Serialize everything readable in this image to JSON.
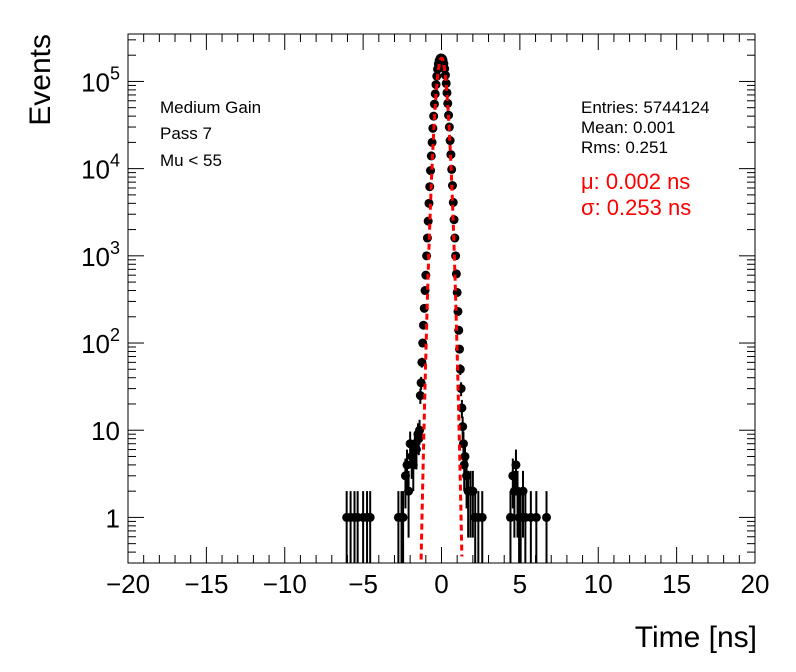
{
  "chart_data": {
    "type": "scatter",
    "title": "",
    "xlabel": "Time [ns]",
    "ylabel": "Events",
    "xlim": [
      -20,
      20
    ],
    "ylim": [
      0.3,
      350000
    ],
    "y_scale": "log",
    "grid": false,
    "x_ticks": [
      "−20",
      "−15",
      "−10",
      "−5",
      "0",
      "5",
      "10",
      "15",
      "20"
    ],
    "x_tick_values": [
      -20,
      -15,
      -10,
      -5,
      0,
      5,
      10,
      15,
      20
    ],
    "y_ticks": [
      {
        "value": 1,
        "base": "1",
        "exp": ""
      },
      {
        "value": 10,
        "base": "10",
        "exp": ""
      },
      {
        "value": 100,
        "base": "10",
        "exp": "2"
      },
      {
        "value": 1000,
        "base": "10",
        "exp": "3"
      },
      {
        "value": 10000,
        "base": "10",
        "exp": "4"
      },
      {
        "value": 100000,
        "base": "10",
        "exp": "5"
      }
    ],
    "annotations_left": [
      "Medium Gain",
      "Pass 7",
      "Mu < 55"
    ],
    "stats": [
      "Entries: 5744124",
      "Mean: 0.001",
      "Rms: 0.251"
    ],
    "fit_text": [
      "μ: 0.002 ns",
      "σ: 0.253 ns"
    ],
    "fit": {
      "type": "gaussian",
      "mu": 0.002,
      "sigma": 0.253,
      "amplitude": 185000,
      "x_range": [
        -1.3,
        1.3
      ],
      "color": "#ff0000"
    },
    "series": [
      {
        "marker_color": "#000000",
        "x": [
          -6.05,
          -5.8,
          -5.55,
          -5.35,
          -5.0,
          -4.75,
          -4.55,
          -2.75,
          -2.55,
          -2.45,
          -2.3,
          -2.2,
          -2.1,
          -2.0,
          -1.9,
          -1.8,
          -1.7,
          -1.6,
          -1.5,
          -1.45,
          -1.4,
          -1.35,
          -1.3,
          -1.25,
          -1.2,
          -1.15,
          -1.1,
          -1.05,
          -1.0,
          -0.95,
          -0.9,
          -0.85,
          -0.8,
          -0.75,
          -0.7,
          -0.65,
          -0.6,
          -0.55,
          -0.5,
          -0.45,
          -0.4,
          -0.35,
          -0.3,
          -0.25,
          -0.2,
          -0.15,
          -0.1,
          -0.05,
          0.0,
          0.05,
          0.1,
          0.15,
          0.2,
          0.25,
          0.3,
          0.35,
          0.4,
          0.45,
          0.5,
          0.55,
          0.6,
          0.65,
          0.7,
          0.75,
          0.8,
          0.85,
          0.9,
          0.95,
          1.0,
          1.05,
          1.1,
          1.15,
          1.2,
          1.25,
          1.3,
          1.35,
          1.4,
          1.45,
          1.5,
          1.6,
          1.7,
          1.85,
          2.0,
          2.15,
          2.35,
          2.6,
          4.4,
          4.55,
          4.65,
          4.75,
          4.85,
          4.95,
          5.05,
          5.2,
          5.35,
          5.7,
          6.05,
          6.7
        ],
        "y": [
          1,
          1,
          1,
          1,
          1,
          1,
          1,
          1,
          1,
          1,
          3,
          4,
          2,
          7,
          5,
          4,
          7,
          6,
          9,
          8,
          10,
          25,
          35,
          60,
          100,
          160,
          250,
          400,
          600,
          1000,
          1600,
          2500,
          4000,
          6200,
          9500,
          14000,
          20000,
          29000,
          40000,
          55000,
          72000,
          92000,
          115000,
          138000,
          158000,
          173000,
          182000,
          186000,
          185000,
          183000,
          175000,
          160000,
          140000,
          118000,
          95000,
          74000,
          56000,
          41000,
          30000,
          21000,
          14500,
          9800,
          6400,
          4100,
          2600,
          1600,
          1000,
          620,
          380,
          230,
          140,
          85,
          50,
          30,
          18,
          11,
          7,
          4,
          5,
          3,
          2,
          2,
          2,
          1,
          1,
          1,
          1,
          3,
          2,
          4,
          2,
          1,
          1,
          2,
          1,
          1,
          1,
          1
        ]
      }
    ]
  }
}
